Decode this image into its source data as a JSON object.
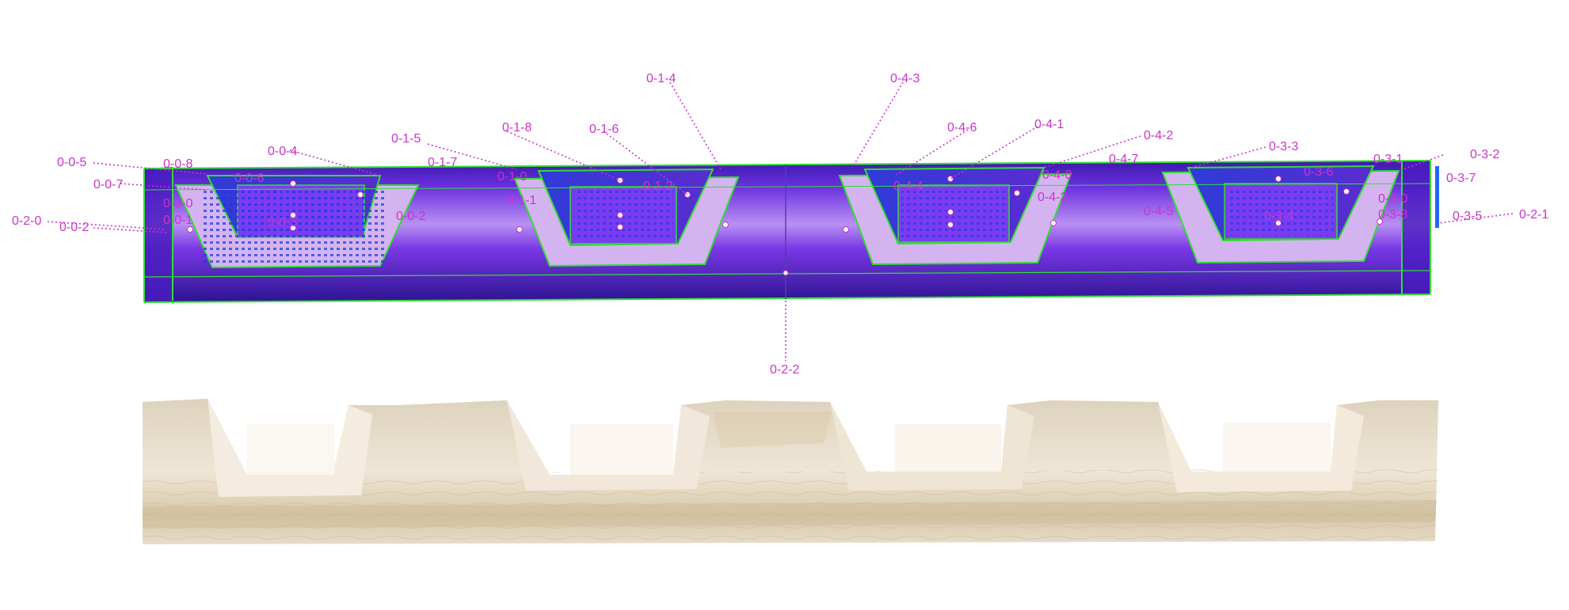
{
  "colors": {
    "label": "#cc33cc",
    "beam_dark": "#3a1aa8",
    "beam_mid": "#7a2ee6",
    "beam_light": "#b78cf0",
    "pocket_floor": "#d7b9f2",
    "wire": "#33dd33",
    "points": "#1040ff",
    "wood": "#ece4d4",
    "wood_shadow": "#cbbd9f",
    "wood_cut": "#f6f0e6"
  },
  "labels": [
    {
      "id": "l-005",
      "text": "0-0-5"
    },
    {
      "id": "l-008",
      "text": "0-0-8"
    },
    {
      "id": "l-007",
      "text": "0-0-7"
    },
    {
      "id": "l-006",
      "text": "0-0-6"
    },
    {
      "id": "l-004",
      "text": "0-0-4"
    },
    {
      "id": "l-020",
      "text": "0-2-0"
    },
    {
      "id": "l-002",
      "text": "0-0-2"
    },
    {
      "id": "l-000",
      "text": "0-0-0"
    },
    {
      "id": "l-001",
      "text": "0-0-1"
    },
    {
      "id": "l-003",
      "text": "0-0-3"
    },
    {
      "id": "l-00x",
      "text": "0-0-2"
    },
    {
      "id": "l-015",
      "text": "0-1-5"
    },
    {
      "id": "l-017",
      "text": "0-1-7"
    },
    {
      "id": "l-018",
      "text": "0-1-8"
    },
    {
      "id": "l-010",
      "text": "0-1-0"
    },
    {
      "id": "l-011",
      "text": "0-1-1"
    },
    {
      "id": "l-016",
      "text": "0-1-6"
    },
    {
      "id": "l-014",
      "text": "0-1-4"
    },
    {
      "id": "l-012",
      "text": "0-1-2"
    },
    {
      "id": "l-043",
      "text": "0-4-3"
    },
    {
      "id": "l-046",
      "text": "0-4-6"
    },
    {
      "id": "l-044",
      "text": "0-4-4"
    },
    {
      "id": "l-041",
      "text": "0-4-1"
    },
    {
      "id": "l-040",
      "text": "0-4-0"
    },
    {
      "id": "l-042",
      "text": "0-4-2"
    },
    {
      "id": "l-047",
      "text": "0-4-7"
    },
    {
      "id": "l-045",
      "text": "0-4-5"
    },
    {
      "id": "l-04x",
      "text": "0-4-2"
    },
    {
      "id": "l-033",
      "text": "0-3-3"
    },
    {
      "id": "l-036",
      "text": "0-3-6"
    },
    {
      "id": "l-031",
      "text": "0-3-1"
    },
    {
      "id": "l-032",
      "text": "0-3-2"
    },
    {
      "id": "l-037",
      "text": "0-3-7"
    },
    {
      "id": "l-030",
      "text": "0-3-0"
    },
    {
      "id": "l-034",
      "text": "0-3-4"
    },
    {
      "id": "l-038",
      "text": "0-3-8"
    },
    {
      "id": "l-035",
      "text": "0-3-5"
    },
    {
      "id": "l-021",
      "text": "0-2-1"
    },
    {
      "id": "l-022",
      "text": "0-2-2"
    }
  ]
}
